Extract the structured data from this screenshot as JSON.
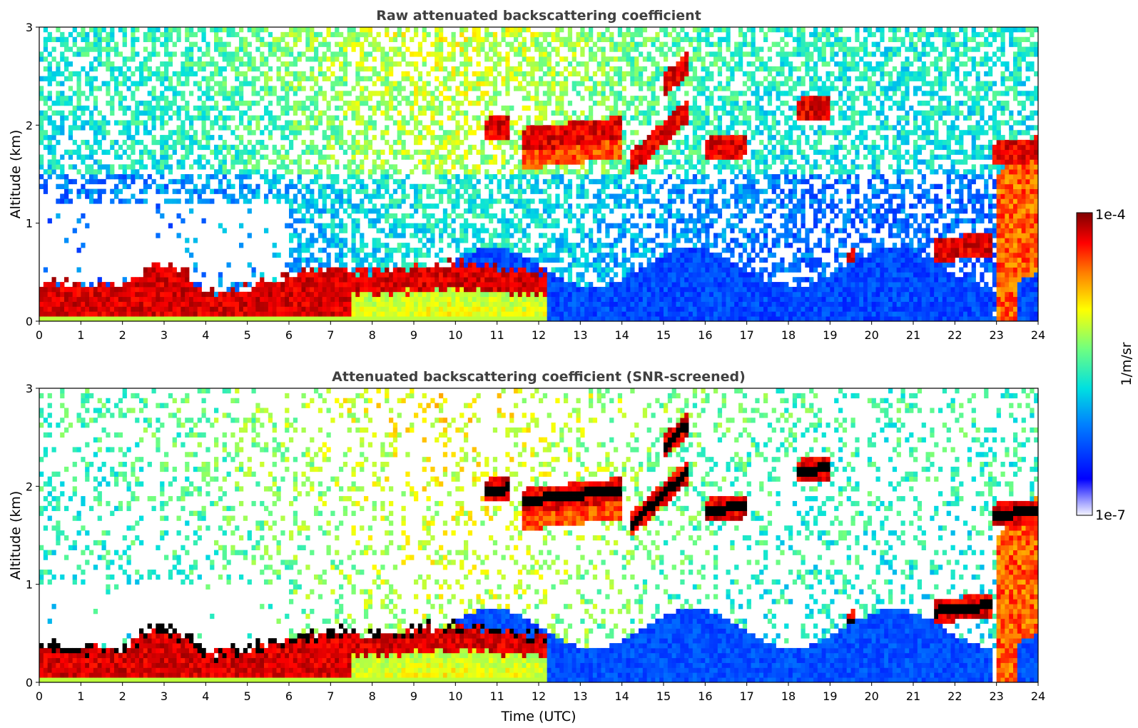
{
  "chart_data": [
    {
      "type": "heatmap",
      "title": "Raw attenuated backscattering coefficient",
      "xlabel": "",
      "ylabel": "Altitude (km)",
      "xlim": [
        0,
        24
      ],
      "ylim": [
        0,
        3
      ],
      "xticks": [
        "0",
        "1",
        "2",
        "3",
        "4",
        "5",
        "6",
        "7",
        "8",
        "9",
        "10",
        "11",
        "12",
        "13",
        "14",
        "15",
        "16",
        "17",
        "18",
        "19",
        "20",
        "21",
        "22",
        "23",
        "24"
      ],
      "yticks": [
        "0",
        "1",
        "2",
        "3"
      ],
      "screened": false,
      "features": {
        "boundary_layer": {
          "top_km": [
            [
              0,
              0.4
            ],
            [
              2,
              0.35
            ],
            [
              2.8,
              0.6
            ],
            [
              3.5,
              0.5
            ],
            [
              4,
              0.3
            ],
            [
              5,
              0.35
            ],
            [
              6,
              0.45
            ],
            [
              7,
              0.55
            ],
            [
              8,
              0.5
            ],
            [
              9,
              0.55
            ],
            [
              10,
              0.6
            ],
            [
              11,
              0.55
            ],
            [
              12,
              0.5
            ]
          ]
        },
        "cloud_layers": [
          {
            "t0": 10.7,
            "t1": 11.3,
            "alt_km": 1.95
          },
          {
            "t0": 11.6,
            "t1": 14.0,
            "alt_km": 1.85
          },
          {
            "t0": 14.2,
            "t1": 15.6,
            "alt_km": 1.6
          },
          {
            "t0": 15.0,
            "t1": 15.6,
            "alt_km": 2.4
          },
          {
            "t0": 16.0,
            "t1": 17.0,
            "alt_km": 1.75
          },
          {
            "t0": 18.2,
            "t1": 19.0,
            "alt_km": 2.15
          },
          {
            "t0": 19.4,
            "t1": 19.6,
            "alt_km": 0.6
          },
          {
            "t0": 21.5,
            "t1": 22.9,
            "alt_km": 0.72
          },
          {
            "t0": 22.9,
            "t1": 24.0,
            "alt_km": 1.7
          }
        ]
      }
    },
    {
      "type": "heatmap",
      "title": "Attenuated backscattering coefficient (SNR-screened)",
      "xlabel": "Time (UTC)",
      "ylabel": "Altitude (km)",
      "xlim": [
        0,
        24
      ],
      "ylim": [
        0,
        3
      ],
      "xticks": [
        "0",
        "1",
        "2",
        "3",
        "4",
        "5",
        "6",
        "7",
        "8",
        "9",
        "10",
        "11",
        "12",
        "13",
        "14",
        "15",
        "16",
        "17",
        "18",
        "19",
        "20",
        "21",
        "22",
        "23",
        "24"
      ],
      "yticks": [
        "0",
        "1",
        "2",
        "3"
      ],
      "screened": true
    }
  ],
  "colorbar": {
    "label": "1/m/sr",
    "max_label": "1e-4",
    "min_label": "1e-7",
    "scale": "log",
    "range": [
      1e-07,
      0.0001
    ],
    "colormap": "jet"
  }
}
